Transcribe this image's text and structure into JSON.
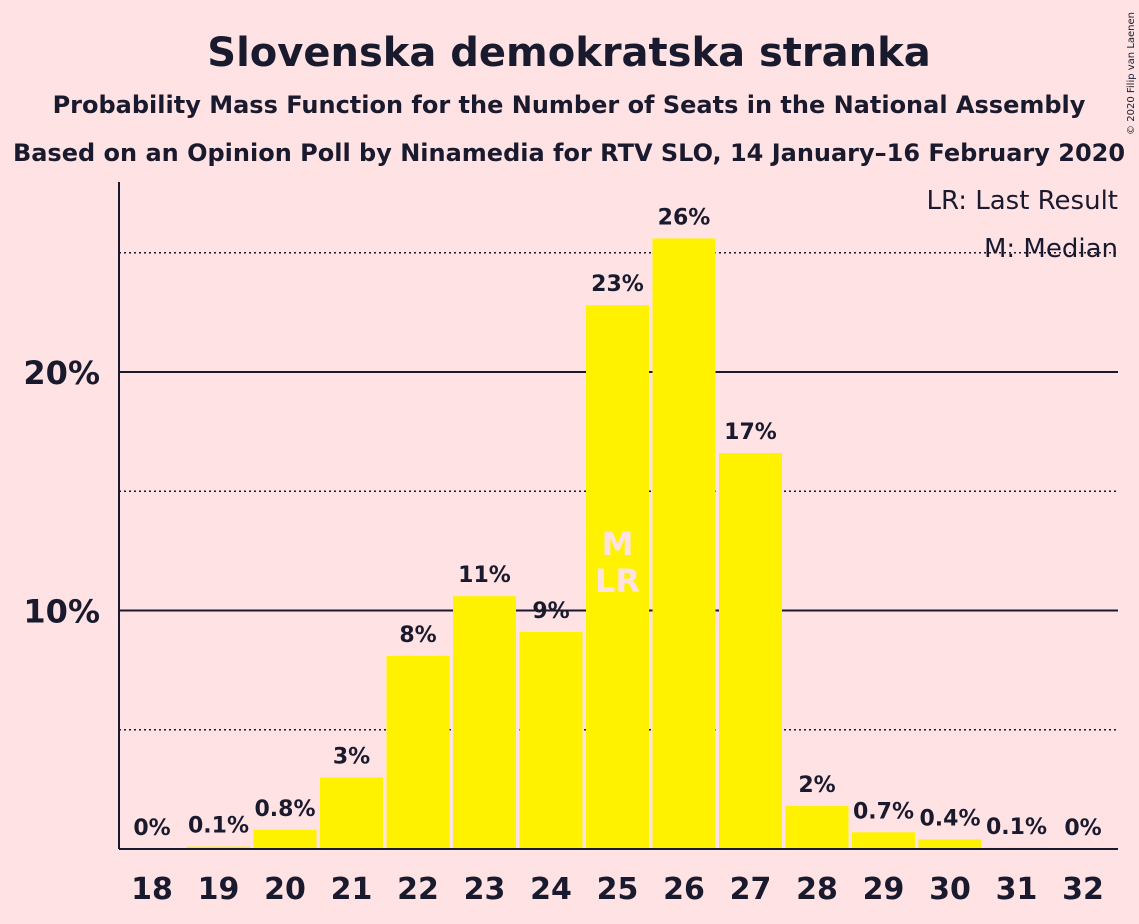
{
  "title": "Slovenska demokratska stranka",
  "subtitle_1": "Probability Mass Function for the Number of Seats in the National Assembly",
  "subtitle_2": "Based on an Opinion Poll by Ninamedia for RTV SLO, 14 January–16 February 2020",
  "copyright": "© 2020 Filip van Laenen",
  "legend": {
    "last_result": "LR: Last Result",
    "median": "M: Median"
  },
  "colors": {
    "background": "#FFE2E3",
    "bar": "#FFF200",
    "text": "#1A1A2E"
  },
  "chart_data": {
    "type": "bar",
    "categories": [
      "18",
      "19",
      "20",
      "21",
      "22",
      "23",
      "24",
      "25",
      "26",
      "27",
      "28",
      "29",
      "30",
      "31",
      "32"
    ],
    "values": [
      0,
      0.1,
      0.8,
      3.0,
      8.1,
      10.6,
      9.1,
      22.8,
      25.6,
      16.6,
      1.8,
      0.7,
      0.4,
      0.05,
      0
    ],
    "data_labels": [
      "0%",
      "0.1%",
      "0.8%",
      "3%",
      "8%",
      "11%",
      "9%",
      "23%",
      "26%",
      "17%",
      "2%",
      "0.7%",
      "0.4%",
      "0.1%",
      "0%"
    ],
    "ylim": [
      0,
      28
    ],
    "y_ticks_major": [
      10,
      20
    ],
    "y_tick_labels": [
      "10%",
      "20%"
    ],
    "y_gridlines_dotted": [
      5,
      15,
      25
    ],
    "median_index": 7,
    "last_result_index": 7,
    "median_marker": "M",
    "last_result_marker": "LR",
    "xlabel": "",
    "ylabel": ""
  }
}
